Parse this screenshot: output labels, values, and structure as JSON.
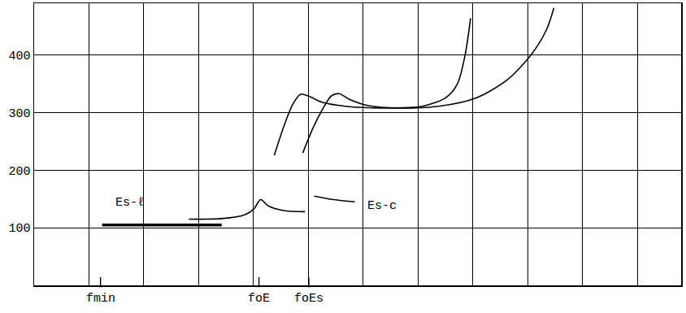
{
  "chart_data": {
    "type": "line",
    "xlim": [
      0,
      11.8
    ],
    "xticks": [
      1,
      2,
      3,
      4,
      5,
      6,
      7,
      8,
      9,
      10,
      11
    ],
    "ylim": [
      0,
      490
    ],
    "yticks": [
      100,
      200,
      300,
      400
    ],
    "grid": true,
    "tick_labels": "y",
    "series": [
      {
        "color": "#000000",
        "line_style": "bold",
        "x": [
          1.24,
          3.42
        ],
        "values": [
          105,
          105
        ]
      },
      {
        "color": "#000000",
        "line_style": "solid",
        "x": [
          2.82,
          3.42,
          3.85,
          4.01,
          4.13,
          4.27,
          4.55,
          4.94
        ],
        "values": [
          115,
          116,
          123,
          133,
          149,
          138,
          130,
          128
        ]
      },
      {
        "color": "#000000",
        "line_style": "solid",
        "x": [
          5.11,
          5.46,
          5.85
        ],
        "values": [
          155,
          149,
          145
        ]
      },
      {
        "color": "#000000",
        "line_style": "solid",
        "x": [
          4.38,
          4.55,
          4.72,
          4.86,
          5.0,
          5.25,
          5.68,
          6.38,
          7.08,
          7.51,
          7.72,
          7.86,
          7.96
        ],
        "values": [
          226,
          275,
          315,
          332,
          329,
          318,
          311,
          308,
          311,
          326,
          350,
          400,
          464
        ]
      },
      {
        "color": "#000000",
        "line_style": "solid",
        "x": [
          4.9,
          5.08,
          5.25,
          5.42,
          5.56,
          5.75,
          6.1,
          6.66,
          7.37,
          8.07,
          8.63,
          9.06,
          9.34,
          9.48
        ],
        "values": [
          230,
          272,
          304,
          329,
          333,
          323,
          312,
          308,
          311,
          326,
          357,
          400,
          443,
          482
        ]
      }
    ],
    "annotations": [
      {
        "text": "Es-ℓ",
        "x": 1.75,
        "y": 128
      },
      {
        "text": "Es-c",
        "x": 6.35,
        "y": 123
      }
    ],
    "markers": [
      {
        "text": "fmin",
        "x": 1.21
      },
      {
        "text": "foE",
        "x": 4.1
      },
      {
        "text": "foEs",
        "x": 5.01
      }
    ]
  }
}
